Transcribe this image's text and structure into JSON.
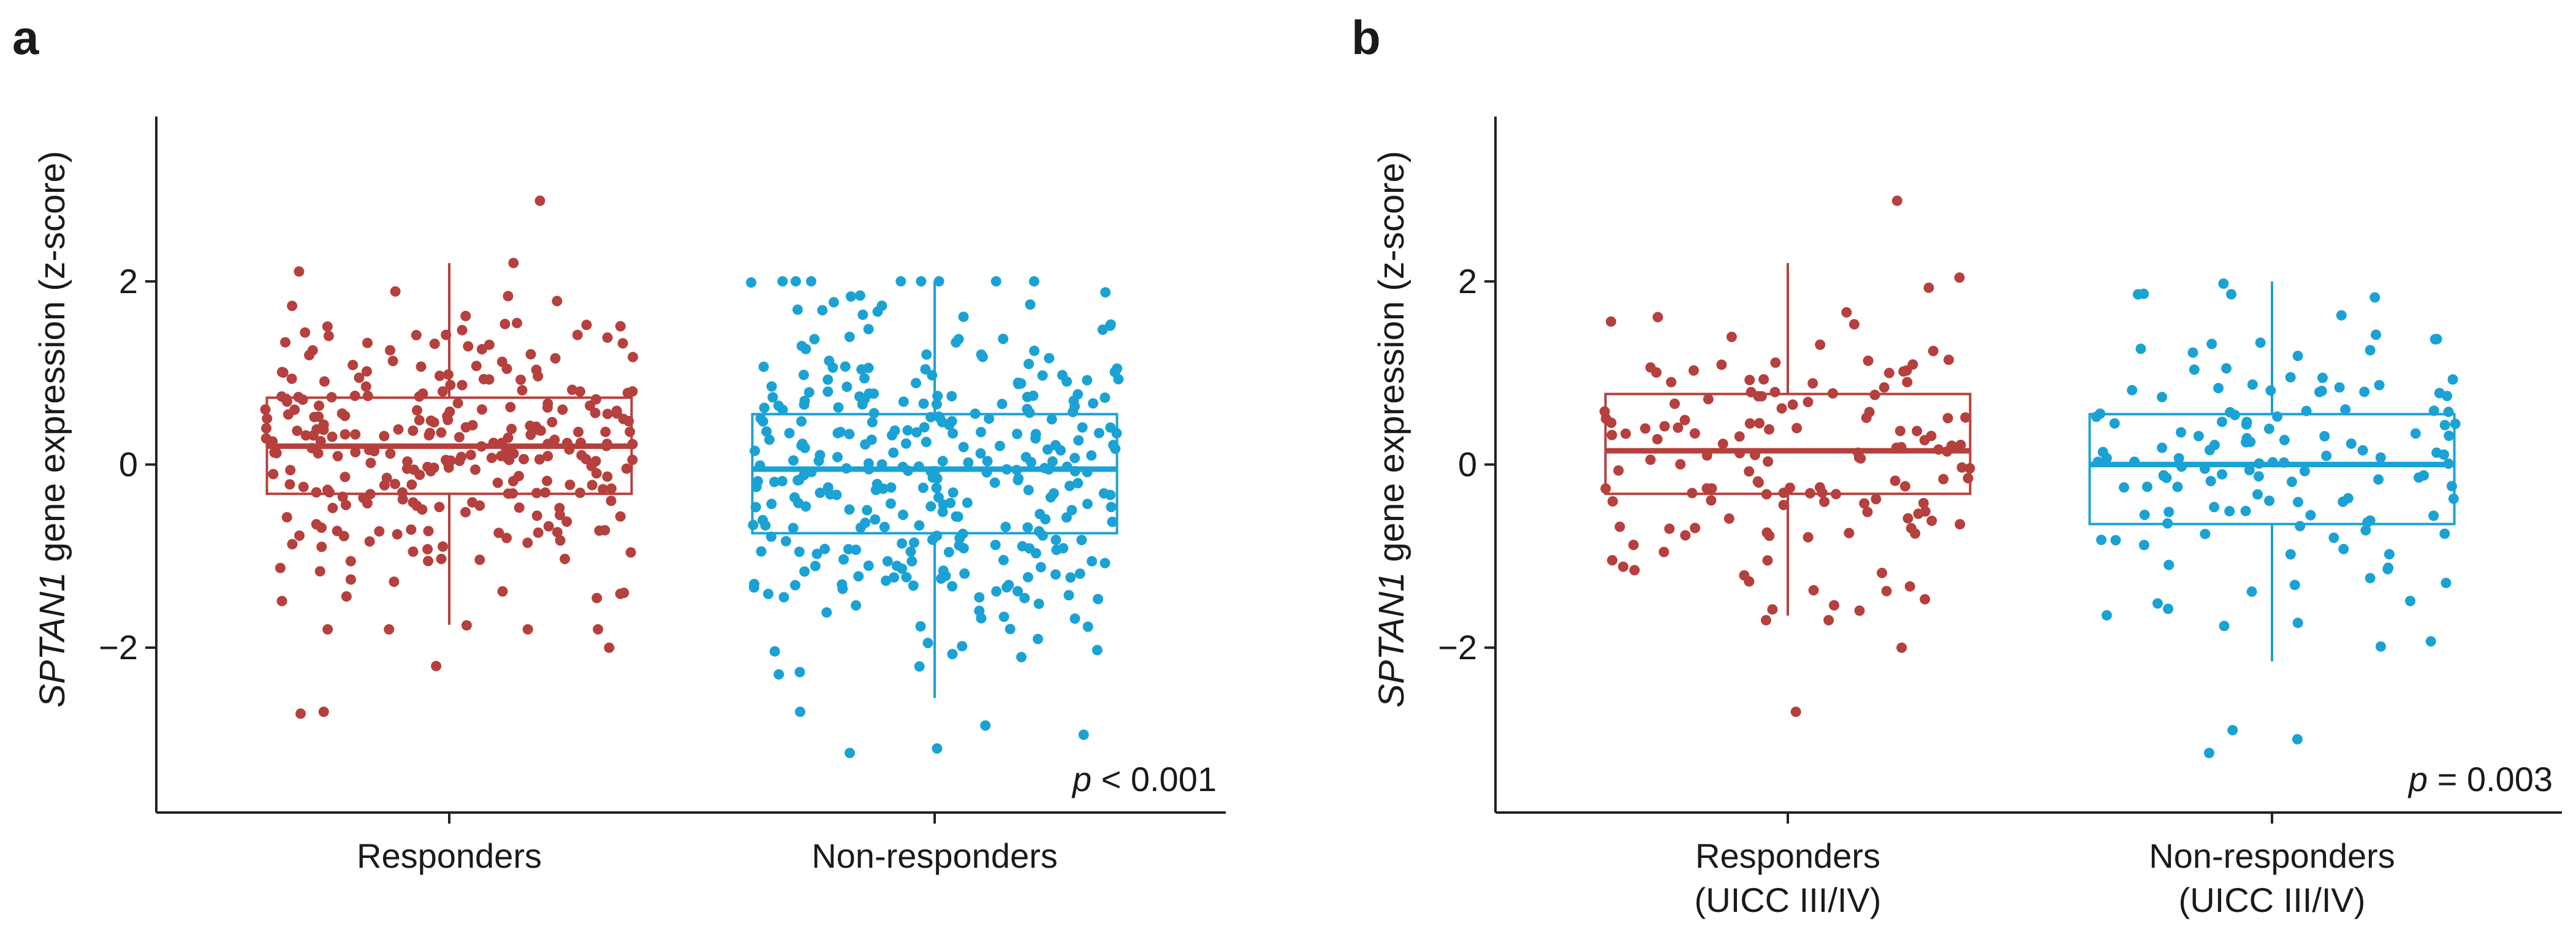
{
  "panels": [
    {
      "letter": "a",
      "ylabel_italic": "SPTAN1",
      "ylabel_rest": " gene expression (z-score)",
      "p_label": "p",
      "p_value": " < 0.001"
    },
    {
      "letter": "b",
      "ylabel_italic": "SPTAN1",
      "ylabel_rest": " gene expression (z-score)",
      "p_label": "p",
      "p_value": " = 0.003"
    }
  ],
  "colors": {
    "responders": "#b5403d",
    "non_responders": "#1ba2d4",
    "axis": "#222222"
  },
  "chart_data": [
    {
      "type": "box",
      "ylim": [
        -3.8,
        3.8
      ],
      "yticks": [
        -2,
        0,
        2
      ],
      "ytick_labels": [
        "−2",
        "0",
        "2"
      ],
      "groups": [
        {
          "label_lines": [
            "Responders"
          ],
          "color_key": "responders",
          "n_points": 280,
          "q1": -0.32,
          "median": 0.2,
          "q3": 0.73,
          "whisker_low": -1.75,
          "whisker_high": 2.2,
          "outliers": [
            -2.0,
            -2.2,
            -2.7,
            -2.72,
            2.88
          ]
        },
        {
          "label_lines": [
            "Non-responders"
          ],
          "color_key": "non_responders",
          "n_points": 330,
          "q1": -0.75,
          "median": -0.05,
          "q3": 0.55,
          "whisker_low": -2.55,
          "whisker_high": 2.0,
          "outliers": [
            -2.7,
            -2.85,
            -2.95,
            -3.15,
            -3.1
          ]
        }
      ]
    },
    {
      "type": "box",
      "ylim": [
        -3.8,
        3.8
      ],
      "yticks": [
        -2,
        0,
        2
      ],
      "ytick_labels": [
        "−2",
        "0",
        "2"
      ],
      "groups": [
        {
          "label_lines": [
            "Responders",
            "(UICC III/IV)"
          ],
          "color_key": "responders",
          "n_points": 140,
          "q1": -0.32,
          "median": 0.15,
          "q3": 0.77,
          "whisker_low": -1.65,
          "whisker_high": 2.2,
          "outliers": [
            -2.0,
            -2.7,
            2.88
          ]
        },
        {
          "label_lines": [
            "Non-responders",
            "(UICC III/IV)"
          ],
          "color_key": "non_responders",
          "n_points": 135,
          "q1": -0.65,
          "median": 0.0,
          "q3": 0.55,
          "whisker_low": -2.15,
          "whisker_high": 2.0,
          "outliers": [
            -2.9,
            -3.15,
            -3.0
          ]
        }
      ]
    }
  ]
}
